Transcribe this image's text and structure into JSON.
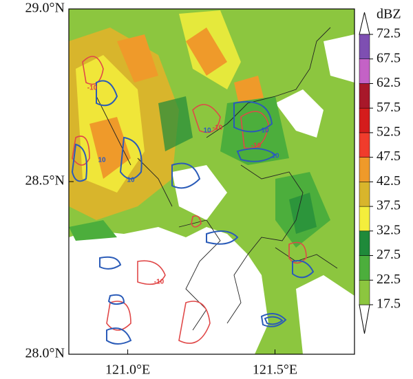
{
  "map": {
    "xlim": [
      120.8,
      121.77
    ],
    "ylim": [
      28.0,
      29.0
    ],
    "xticks": [
      {
        "value": 121.0,
        "label": "121.0°E"
      },
      {
        "value": 121.5,
        "label": "121.5°E"
      }
    ],
    "yticks": [
      {
        "value": 28.0,
        "label": "28.0°N"
      },
      {
        "value": 28.5,
        "label": "28.5°N"
      },
      {
        "value": 29.0,
        "label": "29.0°N"
      }
    ],
    "colorbar": {
      "title": "dBZ",
      "levels": [
        17.5,
        22.5,
        27.5,
        32.5,
        37.5,
        42.5,
        47.5,
        52.5,
        57.5,
        62.5,
        67.5,
        72.5
      ],
      "colors": [
        "#8cc63f",
        "#4cae3c",
        "#1f8a3a",
        "#f4ee3c",
        "#d8b52c",
        "#ef9a2a",
        "#f03c2c",
        "#d41c1c",
        "#a8182a",
        "#c462c6",
        "#7e4fb2"
      ]
    },
    "contour_labels": [
      "-10",
      "10",
      "-10",
      "10",
      "10",
      "10",
      "10",
      "-10",
      "-10"
    ]
  }
}
